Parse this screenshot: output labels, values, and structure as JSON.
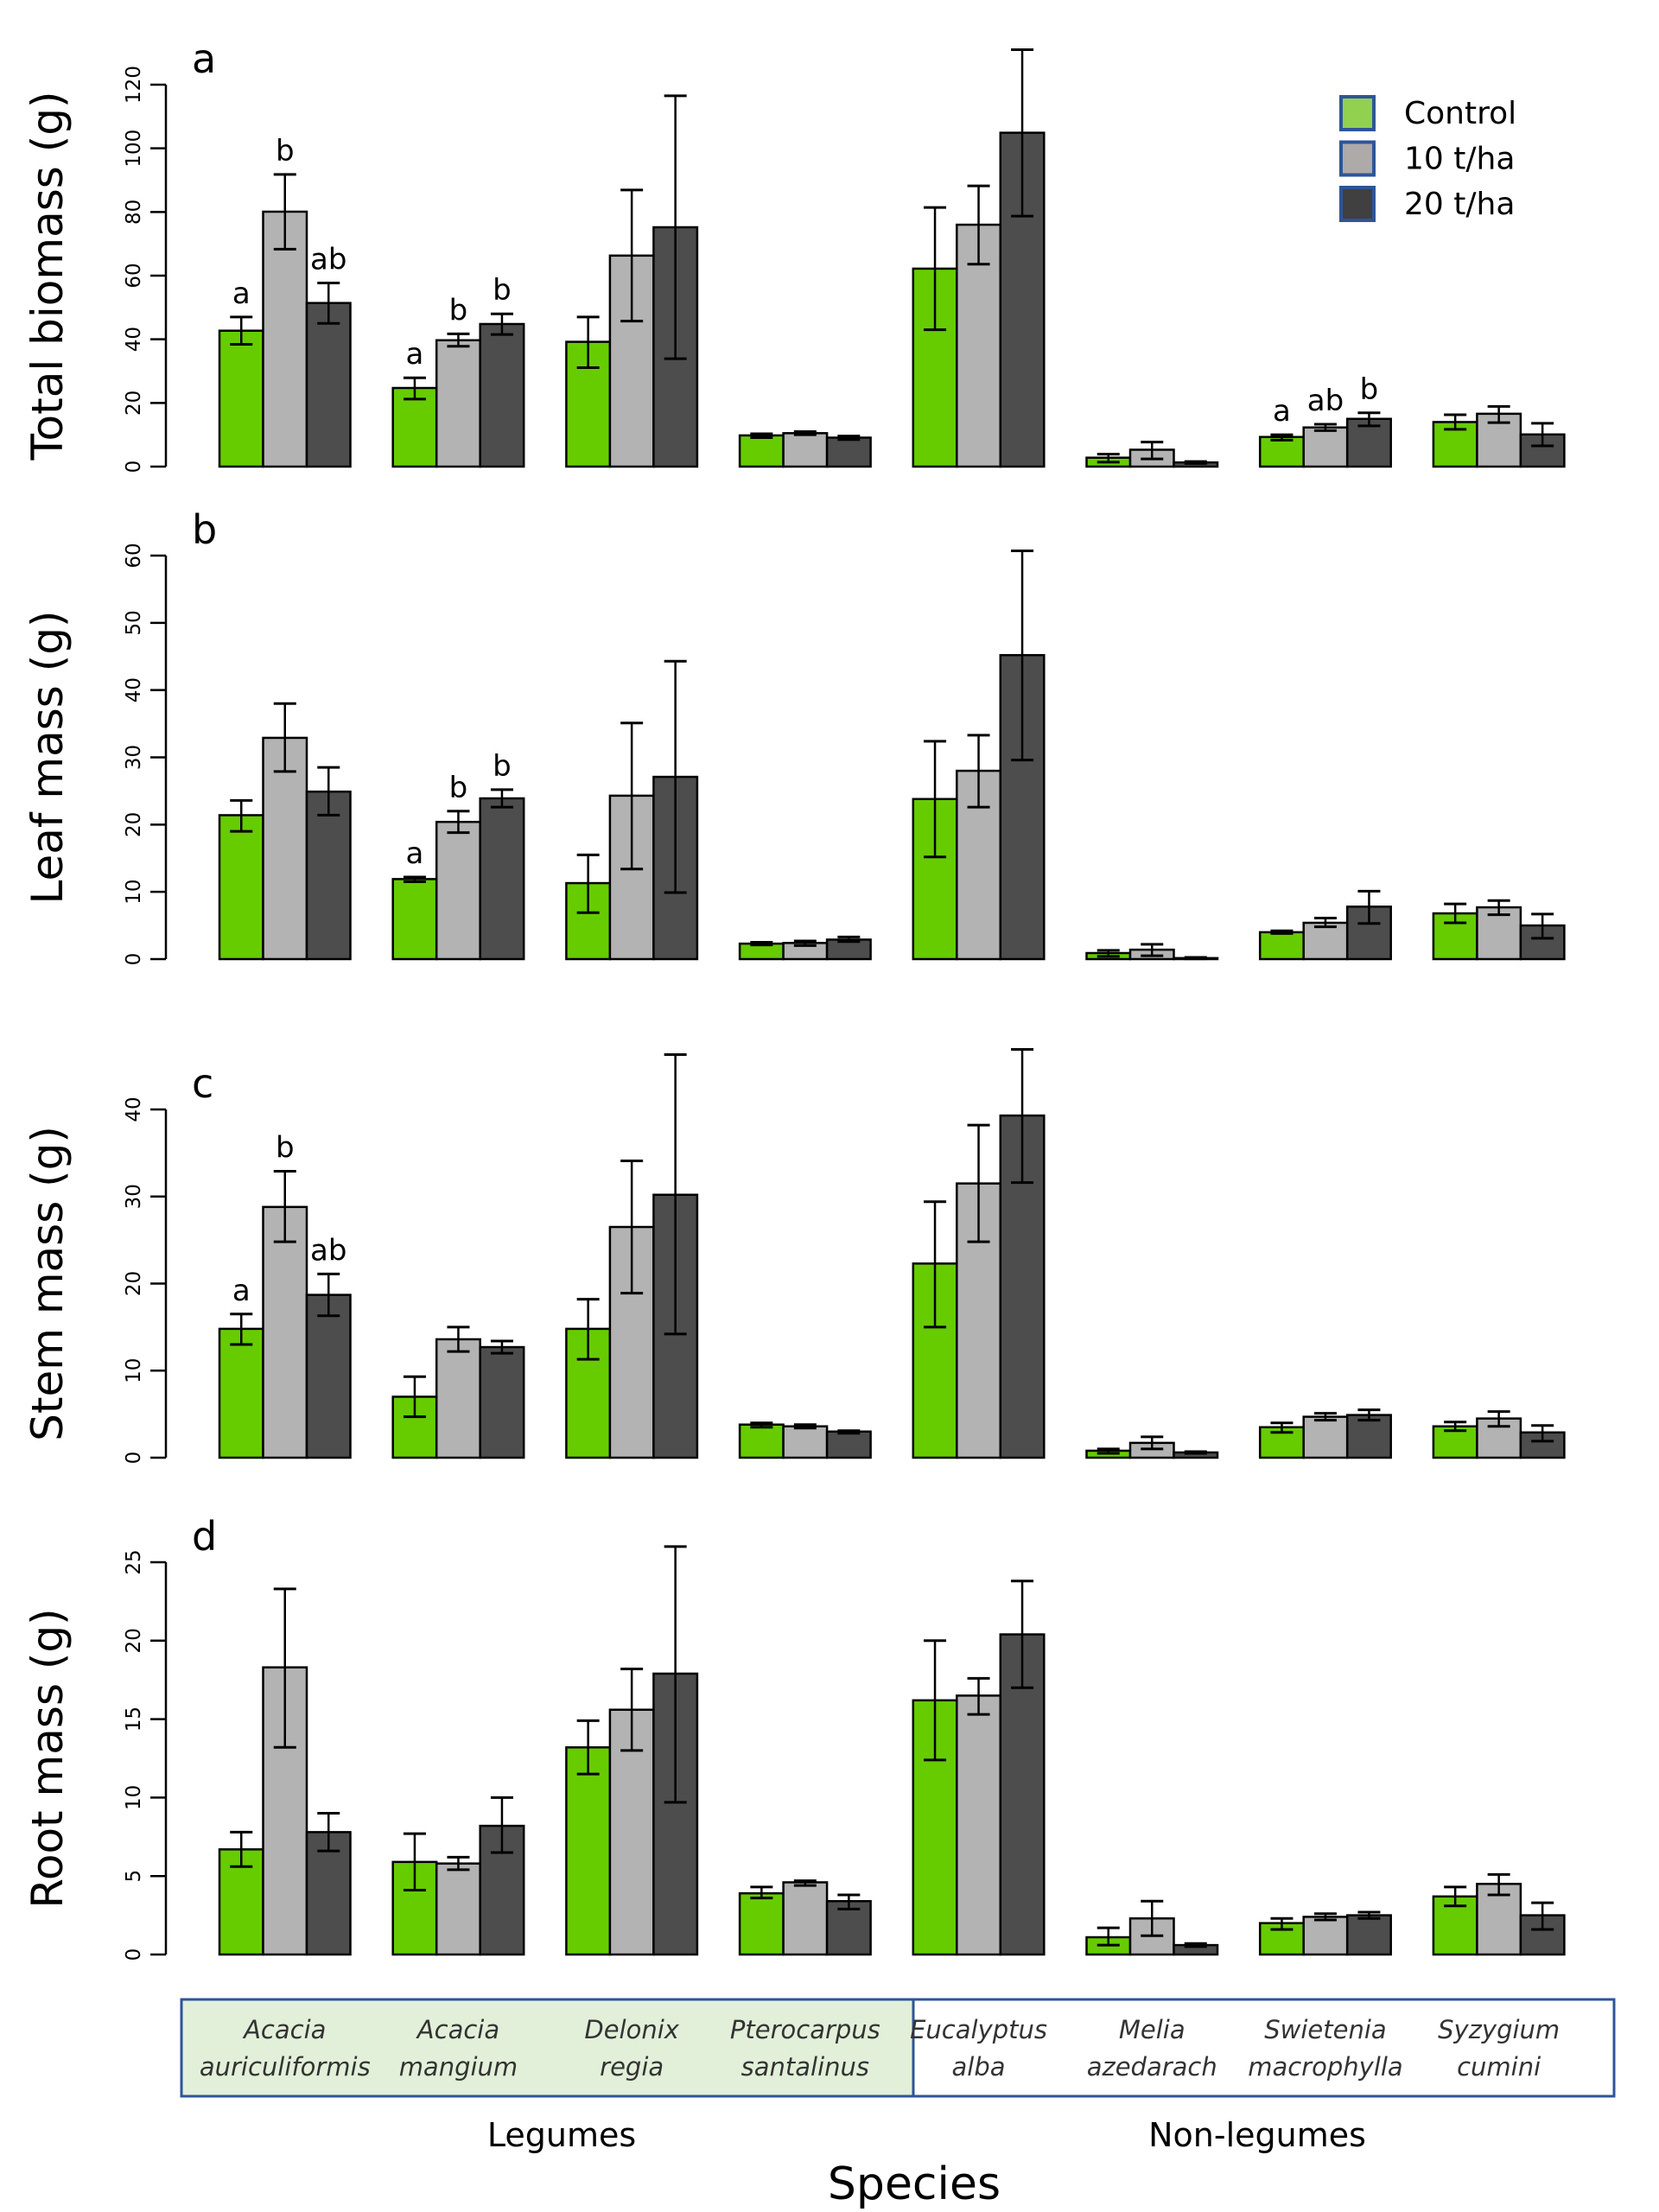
{
  "chart_data": {
    "type": "bar",
    "xlabel": "Species",
    "categories": [
      "Acacia auriculiformis",
      "Acacia mangium",
      "Delonix regia",
      "Pterocarpus santalinus",
      "Eucalyptus alba",
      "Melia azedarach",
      "Swietenia macrophylla",
      "Syzygium cumini"
    ],
    "category_lines": [
      [
        "Acacia",
        "auriculiformis"
      ],
      [
        "Acacia",
        "mangium"
      ],
      [
        "Delonix",
        "regia"
      ],
      [
        "Pterocarpus",
        "santalinus"
      ],
      [
        "Eucalyptus",
        "alba"
      ],
      [
        "Melia",
        "azedarach"
      ],
      [
        "Swietenia",
        "macrophylla"
      ],
      [
        "Syzygium",
        "cumini"
      ]
    ],
    "groups": [
      {
        "label": "Legumes",
        "categories": [
          0,
          1,
          2,
          3
        ],
        "background": "#e2f0d9"
      },
      {
        "label": "Non-legumes",
        "categories": [
          4,
          5,
          6,
          7
        ],
        "background": "#ffffff"
      }
    ],
    "legend": {
      "position": "top-right",
      "entries": [
        {
          "name": "Control",
          "color": "#92d050"
        },
        {
          "name": "10 t/ha",
          "color": "#aeaaaa"
        },
        {
          "name": "20 t/ha",
          "color": "#404040"
        }
      ],
      "border_color": "#2f5597"
    },
    "series_colors": [
      "#66cc00",
      "#b3b3b3",
      "#4d4d4d"
    ],
    "series_names": [
      "Control",
      "10 t/ha",
      "20 t/ha"
    ],
    "panels": [
      {
        "letter": "a",
        "ylabel": "Total biomass (g)",
        "ylim": [
          0,
          120
        ],
        "yticks": [
          0,
          20,
          40,
          60,
          80,
          100,
          120
        ],
        "values": [
          [
            42.7,
            80.1,
            51.4
          ],
          [
            24.7,
            39.7,
            44.8
          ],
          [
            39.2,
            66.3,
            75.2
          ],
          [
            9.8,
            10.5,
            9.1
          ],
          [
            62.2,
            76.0,
            104.9
          ],
          [
            2.8,
            5.3,
            1.3
          ],
          [
            9.3,
            12.3,
            15.0
          ],
          [
            14.0,
            16.6,
            10.1
          ]
        ],
        "errors": [
          [
            [
              38.4,
              47.0
            ],
            [
              68.3,
              91.8
            ],
            [
              45.0,
              57.7
            ]
          ],
          [
            [
              21.2,
              27.9
            ],
            [
              37.8,
              41.7
            ],
            [
              41.5,
              48.0
            ]
          ],
          [
            [
              31.1,
              47.0
            ],
            [
              45.7,
              86.9
            ],
            [
              33.9,
              116.5
            ]
          ],
          [
            [
              9.1,
              10.3
            ],
            [
              10.0,
              11.0
            ],
            [
              8.5,
              9.6
            ]
          ],
          [
            [
              43.0,
              81.4
            ],
            [
              63.6,
              88.2
            ],
            [
              78.7,
              131.0
            ]
          ],
          [
            [
              1.4,
              3.9
            ],
            [
              2.4,
              7.7
            ],
            [
              1.0,
              1.6
            ]
          ],
          [
            [
              8.3,
              10.0
            ],
            [
              11.3,
              13.3
            ],
            [
              12.8,
              16.9
            ]
          ],
          [
            [
              11.7,
              16.3
            ],
            [
              13.8,
              18.9
            ],
            [
              6.5,
              13.6
            ]
          ]
        ],
        "letters": [
          [
            "a",
            "b",
            "ab"
          ],
          [
            "a",
            "b",
            "b"
          ],
          [
            "",
            "",
            ""
          ],
          [
            "",
            "",
            ""
          ],
          [
            "",
            "",
            ""
          ],
          [
            "",
            "",
            ""
          ],
          [
            "a",
            "ab",
            "b"
          ],
          [
            "",
            "",
            ""
          ]
        ]
      },
      {
        "letter": "b",
        "ylabel": "Leaf mass (g)",
        "ylim": [
          0,
          60
        ],
        "yticks": [
          0,
          10,
          20,
          30,
          40,
          50,
          60
        ],
        "values": [
          [
            21.4,
            32.9,
            24.9
          ],
          [
            11.9,
            20.4,
            23.9
          ],
          [
            11.3,
            24.3,
            27.1
          ],
          [
            2.3,
            2.4,
            2.9
          ],
          [
            23.8,
            28.0,
            45.2
          ],
          [
            0.9,
            1.4,
            0.15
          ],
          [
            4.0,
            5.4,
            7.8
          ],
          [
            6.8,
            7.7,
            5.0
          ]
        ],
        "errors": [
          [
            [
              19.0,
              23.6
            ],
            [
              27.9,
              38.0
            ],
            [
              21.4,
              28.5
            ]
          ],
          [
            [
              11.5,
              12.2
            ],
            [
              18.8,
              22.0
            ],
            [
              22.6,
              25.2
            ]
          ],
          [
            [
              6.9,
              15.5
            ],
            [
              13.4,
              35.1
            ],
            [
              9.9,
              44.3
            ]
          ],
          [
            [
              2.1,
              2.5
            ],
            [
              2.0,
              2.7
            ],
            [
              2.6,
              3.3
            ]
          ],
          [
            [
              15.2,
              32.4
            ],
            [
              22.6,
              33.3
            ],
            [
              29.6,
              60.7
            ]
          ],
          [
            [
              0.4,
              1.3
            ],
            [
              0.5,
              2.2
            ],
            [
              0.05,
              0.25
            ]
          ],
          [
            [
              3.8,
              4.2
            ],
            [
              4.8,
              6.1
            ],
            [
              5.3,
              10.1
            ]
          ],
          [
            [
              5.4,
              8.2
            ],
            [
              6.6,
              8.7
            ],
            [
              3.1,
              6.7
            ]
          ]
        ],
        "letters": [
          [
            "",
            "",
            ""
          ],
          [
            "a",
            "b",
            "b"
          ],
          [
            "",
            "",
            ""
          ],
          [
            "",
            "",
            ""
          ],
          [
            "",
            "",
            ""
          ],
          [
            "",
            "",
            ""
          ],
          [
            "",
            "",
            ""
          ],
          [
            "",
            "",
            ""
          ]
        ]
      },
      {
        "letter": "c",
        "ylabel": "Stem  mass (g)",
        "ylim": [
          0,
          40
        ],
        "yticks": [
          0,
          10,
          20,
          30,
          40
        ],
        "values": [
          [
            14.8,
            28.8,
            18.7
          ],
          [
            7.0,
            13.6,
            12.7
          ],
          [
            14.8,
            26.5,
            30.2
          ],
          [
            3.8,
            3.6,
            3.0
          ],
          [
            22.3,
            31.5,
            39.3
          ],
          [
            0.8,
            1.7,
            0.6
          ],
          [
            3.5,
            4.7,
            4.9
          ],
          [
            3.6,
            4.5,
            2.9
          ]
        ],
        "errors": [
          [
            [
              13.0,
              16.5
            ],
            [
              24.8,
              32.9
            ],
            [
              16.3,
              21.1
            ]
          ],
          [
            [
              4.7,
              9.3
            ],
            [
              12.2,
              15.0
            ],
            [
              12.0,
              13.4
            ]
          ],
          [
            [
              11.3,
              18.2
            ],
            [
              18.9,
              34.1
            ],
            [
              14.2,
              46.3
            ]
          ],
          [
            [
              3.5,
              4.0
            ],
            [
              3.4,
              3.8
            ],
            [
              2.8,
              3.1
            ]
          ],
          [
            [
              15.0,
              29.4
            ],
            [
              24.8,
              38.2
            ],
            [
              31.6,
              46.9
            ]
          ],
          [
            [
              0.5,
              1.0
            ],
            [
              1.0,
              2.4
            ],
            [
              0.5,
              0.7
            ]
          ],
          [
            [
              2.9,
              4.0
            ],
            [
              4.3,
              5.1
            ],
            [
              4.3,
              5.5
            ]
          ],
          [
            [
              3.1,
              4.1
            ],
            [
              3.6,
              5.3
            ],
            [
              1.9,
              3.7
            ]
          ]
        ],
        "letters": [
          [
            "a",
            "b",
            "ab"
          ],
          [
            "",
            "",
            ""
          ],
          [
            "",
            "",
            ""
          ],
          [
            "",
            "",
            ""
          ],
          [
            "",
            "",
            ""
          ],
          [
            "",
            "",
            ""
          ],
          [
            "",
            "",
            ""
          ],
          [
            "",
            "",
            ""
          ]
        ]
      },
      {
        "letter": "d",
        "ylabel": "Root  mass (g)",
        "ylim": [
          0,
          25
        ],
        "yticks": [
          0,
          5,
          10,
          15,
          20,
          25
        ],
        "values": [
          [
            6.7,
            18.3,
            7.8
          ],
          [
            5.9,
            5.8,
            8.2
          ],
          [
            13.2,
            15.6,
            17.9
          ],
          [
            3.9,
            4.6,
            3.4
          ],
          [
            16.2,
            16.5,
            20.4
          ],
          [
            1.1,
            2.3,
            0.6
          ],
          [
            2.0,
            2.4,
            2.5
          ],
          [
            3.7,
            4.5,
            2.5
          ]
        ],
        "errors": [
          [
            [
              5.6,
              7.8
            ],
            [
              13.2,
              23.3
            ],
            [
              6.6,
              9.0
            ]
          ],
          [
            [
              4.1,
              7.7
            ],
            [
              5.4,
              6.2
            ],
            [
              6.5,
              10.0
            ]
          ],
          [
            [
              11.5,
              14.9
            ],
            [
              13.0,
              18.2
            ],
            [
              9.7,
              26.0
            ]
          ],
          [
            [
              3.6,
              4.3
            ],
            [
              4.4,
              4.7
            ],
            [
              2.9,
              3.8
            ]
          ],
          [
            [
              12.4,
              20.0
            ],
            [
              15.3,
              17.6
            ],
            [
              17.0,
              23.8
            ]
          ],
          [
            [
              0.6,
              1.7
            ],
            [
              1.2,
              3.4
            ],
            [
              0.5,
              0.7
            ]
          ],
          [
            [
              1.6,
              2.3
            ],
            [
              2.2,
              2.6
            ],
            [
              2.3,
              2.7
            ]
          ],
          [
            [
              3.1,
              4.3
            ],
            [
              3.8,
              5.1
            ],
            [
              1.6,
              3.3
            ]
          ]
        ],
        "letters": [
          [
            "",
            "",
            ""
          ],
          [
            "",
            "",
            ""
          ],
          [
            "",
            "",
            ""
          ],
          [
            "",
            "",
            ""
          ],
          [
            "",
            "",
            ""
          ],
          [
            "",
            "",
            ""
          ],
          [
            "",
            "",
            ""
          ],
          [
            "",
            "",
            ""
          ]
        ]
      }
    ]
  }
}
